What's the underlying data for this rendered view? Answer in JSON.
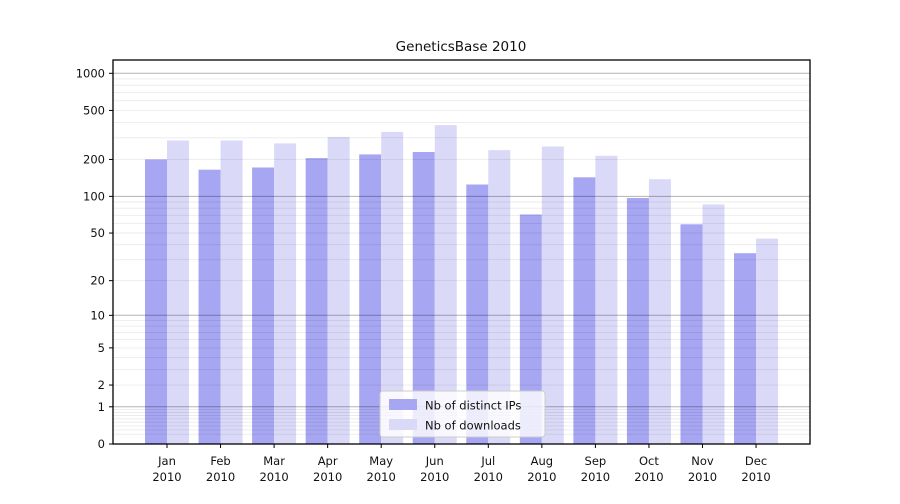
{
  "chart_data": {
    "type": "bar",
    "title": "GeneticsBase 2010",
    "categories": [
      "Jan",
      "Feb",
      "Mar",
      "Apr",
      "May",
      "Jun",
      "Jul",
      "Aug",
      "Sep",
      "Oct",
      "Nov",
      "Dec"
    ],
    "year": "2010",
    "series": [
      {
        "name": "Nb of distinct IPs",
        "color": "#a6a6f2",
        "values": [
          200,
          165,
          172,
          205,
          220,
          230,
          125,
          71,
          143,
          97,
          59,
          34
        ]
      },
      {
        "name": "Nb of downloads",
        "color": "#dadaf8",
        "values": [
          285,
          285,
          270,
          305,
          335,
          380,
          238,
          255,
          214,
          138,
          86,
          45
        ]
      }
    ],
    "xlabel": "",
    "ylabel": "",
    "yscale": "log(1+x)",
    "yticks": [
      0,
      1,
      2,
      5,
      10,
      20,
      50,
      100,
      200,
      500,
      1000
    ],
    "ylim": [
      0,
      1280
    ],
    "grid": "horizontal, light minor lines per log decade, darker lines at 1/10/100/1000",
    "legend_position": "inside bottom-center",
    "colors": {
      "background": "#ffffff",
      "spine": "#000000",
      "major_grid": "rgba(0,0,0,0.30)",
      "minor_grid": "rgba(0,0,0,0.08)",
      "legend_border": "#cccccc",
      "legend_background": "rgba(255,255,255,0.8)"
    }
  }
}
